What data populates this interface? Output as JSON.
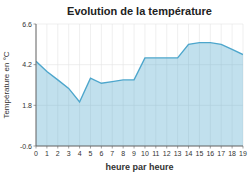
{
  "chart_data": {
    "type": "area",
    "title": "Evolution de la température",
    "xlabel": "heure par heure",
    "ylabel": "Température en °C",
    "x": [
      0,
      1,
      2,
      3,
      4,
      5,
      6,
      7,
      8,
      9,
      10,
      11,
      12,
      13,
      14,
      15,
      16,
      17,
      18,
      19
    ],
    "values": [
      4.4,
      3.8,
      3.3,
      2.8,
      2.0,
      3.4,
      3.1,
      3.2,
      3.3,
      3.3,
      4.6,
      4.6,
      4.6,
      4.6,
      5.4,
      5.5,
      5.5,
      5.4,
      5.1,
      4.8
    ],
    "xlim": [
      0,
      19
    ],
    "ylim": [
      -0.6,
      6.6
    ],
    "xticks": [
      0,
      1,
      2,
      3,
      4,
      5,
      6,
      7,
      8,
      9,
      10,
      11,
      12,
      13,
      14,
      15,
      16,
      17,
      18,
      19
    ],
    "yticks": [
      -0.6,
      1.8,
      4.2,
      6.6
    ],
    "color": "#4da6cc",
    "grid": true
  }
}
